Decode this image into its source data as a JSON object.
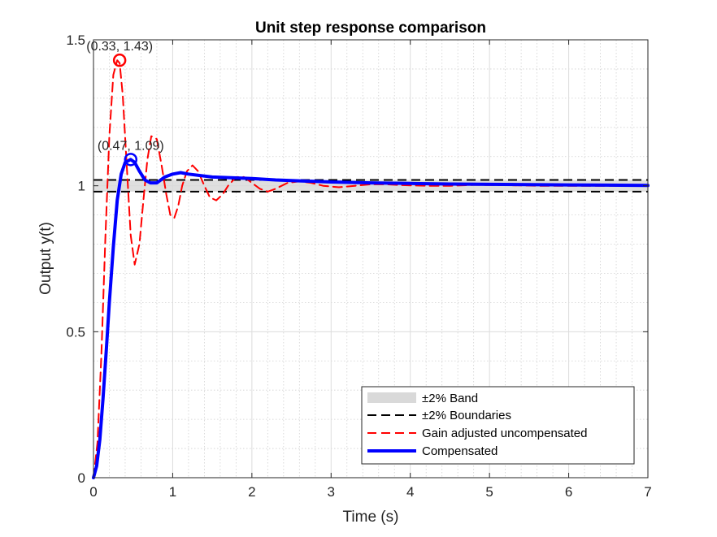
{
  "chart_data": {
    "type": "line",
    "title": "Unit step response comparison",
    "xlabel": "Time (s)",
    "ylabel": "Output y(t)",
    "xlim": [
      0,
      7
    ],
    "ylim": [
      0,
      1.5
    ],
    "x_ticks": [
      0,
      1,
      2,
      3,
      4,
      5,
      6,
      7
    ],
    "y_ticks": [
      0,
      0.5,
      1,
      1.5
    ],
    "x_tick_labels": [
      "0",
      "1",
      "2",
      "3",
      "4",
      "5",
      "6",
      "7"
    ],
    "y_tick_labels": [
      "0",
      "0.5",
      "1",
      "1.5"
    ],
    "grid": true,
    "minor_grid": true,
    "band": {
      "name": "±2% Band",
      "lower": 0.98,
      "upper": 1.02,
      "color": "#d9d9d9"
    },
    "boundaries": {
      "name": "±2% Boundaries",
      "values": [
        0.98,
        1.02
      ],
      "color": "#000000"
    },
    "series": [
      {
        "name": "Gain adjusted uncompensated",
        "color": "#ff0000",
        "style": "dashed",
        "x": [
          0,
          0.05,
          0.1,
          0.15,
          0.2,
          0.25,
          0.3,
          0.33,
          0.37,
          0.42,
          0.47,
          0.52,
          0.58,
          0.63,
          0.68,
          0.73,
          0.8,
          0.86,
          0.92,
          0.97,
          1.02,
          1.07,
          1.12,
          1.18,
          1.25,
          1.32,
          1.4,
          1.47,
          1.55,
          1.63,
          1.7,
          1.8,
          1.9,
          2.0,
          2.1,
          2.2,
          2.3,
          2.45,
          2.6,
          2.75,
          2.9,
          3.1,
          3.3,
          3.5,
          3.7,
          3.9,
          4.2,
          4.5,
          4.8,
          5.2,
          5.6,
          6.0,
          6.5,
          7.0
        ],
        "y": [
          0,
          0.12,
          0.42,
          0.82,
          1.17,
          1.38,
          1.43,
          1.42,
          1.31,
          1.07,
          0.83,
          0.73,
          0.8,
          0.95,
          1.09,
          1.17,
          1.16,
          1.07,
          0.97,
          0.9,
          0.89,
          0.93,
          1.0,
          1.05,
          1.07,
          1.05,
          1.0,
          0.96,
          0.95,
          0.97,
          1.0,
          1.03,
          1.03,
          1.01,
          0.99,
          0.98,
          0.99,
          1.01,
          1.015,
          1.01,
          1.0,
          0.995,
          1.0,
          1.005,
          1.005,
          1.002,
          1.0,
          1.0,
          1.003,
          1.002,
          1.0,
          1.0,
          1.0,
          1.0
        ]
      },
      {
        "name": "Compensated",
        "color": "#0000ff",
        "style": "solid",
        "x": [
          0,
          0.04,
          0.08,
          0.12,
          0.16,
          0.2,
          0.25,
          0.3,
          0.35,
          0.4,
          0.47,
          0.52,
          0.58,
          0.65,
          0.72,
          0.8,
          0.9,
          1.0,
          1.1,
          1.2,
          1.35,
          1.5,
          1.7,
          2.0,
          2.3,
          2.6,
          3.0,
          3.5,
          4.0,
          4.5,
          5.0,
          5.5,
          6.0,
          6.5,
          7.0
        ],
        "y": [
          0,
          0.04,
          0.13,
          0.27,
          0.43,
          0.6,
          0.79,
          0.95,
          1.04,
          1.08,
          1.09,
          1.08,
          1.05,
          1.02,
          1.01,
          1.01,
          1.03,
          1.04,
          1.045,
          1.04,
          1.035,
          1.03,
          1.028,
          1.025,
          1.02,
          1.017,
          1.013,
          1.01,
          1.008,
          1.006,
          1.005,
          1.004,
          1.003,
          1.002,
          1.001
        ]
      }
    ],
    "markers": [
      {
        "x": 0.33,
        "y": 1.43,
        "label": "(0.33, 1.43)",
        "color": "#ff0000"
      },
      {
        "x": 0.47,
        "y": 1.09,
        "label": "(0.47, 1.09)",
        "color": "#0000ff"
      }
    ],
    "legend": {
      "placement": "bottom-right",
      "entries": [
        "±2% Band",
        "±2% Boundaries",
        "Gain adjusted uncompensated",
        "Compensated"
      ]
    }
  }
}
